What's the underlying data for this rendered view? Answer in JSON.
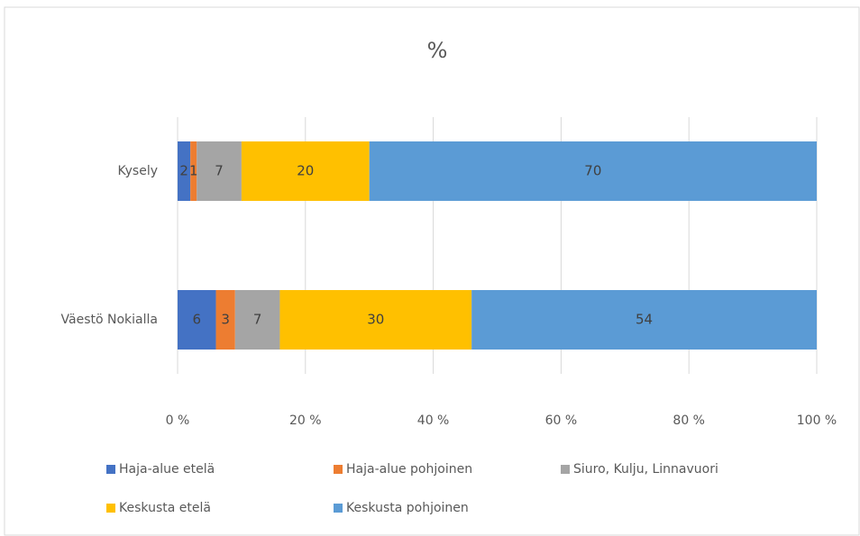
{
  "chart_data": {
    "type": "stacked-bar-horizontal",
    "title": "%",
    "categories": [
      "Kysely",
      "Väestö Nokialla"
    ],
    "series": [
      {
        "name": "Haja-alue etelä",
        "color": "#4472c4",
        "values": [
          2,
          6
        ]
      },
      {
        "name": "Haja-alue pohjoinen",
        "color": "#ed7d31",
        "values": [
          1,
          3
        ]
      },
      {
        "name": "Siuro, Kulju, Linnavuori",
        "color": "#a5a5a5",
        "values": [
          7,
          7
        ]
      },
      {
        "name": "Keskusta etelä",
        "color": "#ffc000",
        "values": [
          20,
          30
        ]
      },
      {
        "name": "Keskusta pohjoinen",
        "color": "#5b9bd5",
        "values": [
          70,
          54
        ]
      }
    ],
    "xlim": [
      0,
      100
    ],
    "xticks": [
      {
        "value": 0,
        "label": "0 %"
      },
      {
        "value": 20,
        "label": "20 %"
      },
      {
        "value": 40,
        "label": "40 %"
      },
      {
        "value": 60,
        "label": "60 %"
      },
      {
        "value": 80,
        "label": "80 %"
      },
      {
        "value": 100,
        "label": "100 %"
      }
    ],
    "grid": true,
    "legend": "bottom"
  }
}
